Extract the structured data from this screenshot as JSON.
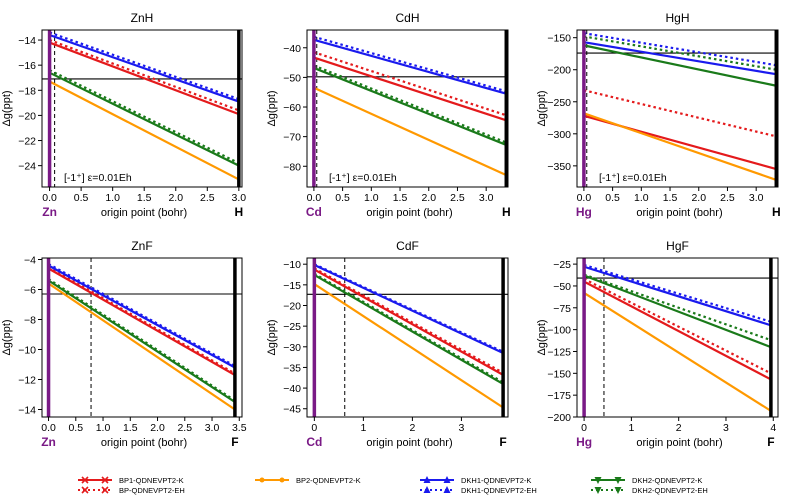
{
  "legend": {
    "entries": [
      {
        "label": "BP1-QDNEVPT2-K",
        "color": "#e41a1c",
        "style": "solid",
        "marker": "x"
      },
      {
        "label": "BP-QDNEVPT2-EH",
        "color": "#e41a1c",
        "style": "dotted",
        "marker": "x"
      },
      {
        "label": "BP2-QDNEVPT2-K",
        "color": "#ff9900",
        "style": "solid",
        "marker": "o"
      },
      {
        "label": "DKH1-QDNEVPT2-K",
        "color": "#1a1aee",
        "style": "solid",
        "marker": "^"
      },
      {
        "label": "DKH1-QDNEVPT2-EH",
        "color": "#1a1aee",
        "style": "dotted",
        "marker": "^"
      },
      {
        "label": "DKH2-QDNEVPT2-K",
        "color": "#1a7a1a",
        "style": "solid",
        "marker": "v"
      },
      {
        "label": "DKH2-QDNEVPT2-EH",
        "color": "#1a7a1a",
        "style": "dotted",
        "marker": "v"
      }
    ]
  },
  "chart_data": [
    {
      "type": "line",
      "title": "ZnH",
      "xlabel": "origin point (bohr)",
      "ylabel": "Δg(ppt)",
      "atom": "Zn",
      "end": "H",
      "xlim": [
        -0.12,
        3.05
      ],
      "ylim": [
        -25.7,
        -13.2
      ],
      "xticks": [
        0.0,
        0.5,
        1.0,
        1.5,
        2.0,
        2.5,
        3.0
      ],
      "xtick_labels": [
        "0.0",
        "0.5",
        "1.0",
        "1.5",
        "2.0",
        "2.5",
        "3.0"
      ],
      "yticks": [
        -24,
        -22,
        -20,
        -18,
        -16,
        -14
      ],
      "ytick_labels": [
        "−24",
        "−22",
        "−20",
        "−18",
        "−16",
        "−14"
      ],
      "atom_x": 0.0,
      "end_x": 3.0,
      "hline": -17.1,
      "vline_dashed": 0.08,
      "annotation": "[-1⁺] ε=0.01Eh",
      "series": [
        {
          "name": "BP1-QDNEVPT2-K",
          "x": [
            0,
            3.0
          ],
          "y": [
            -14.2,
            -19.9
          ]
        },
        {
          "name": "BP-QDNEVPT2-EH",
          "x": [
            0,
            3.0
          ],
          "y": [
            -14.0,
            -19.6
          ]
        },
        {
          "name": "BP2-QDNEVPT2-K",
          "x": [
            0,
            3.0
          ],
          "y": [
            -17.3,
            -25.1
          ]
        },
        {
          "name": "DKH1-QDNEVPT2-K",
          "x": [
            0,
            3.0
          ],
          "y": [
            -13.6,
            -18.9
          ]
        },
        {
          "name": "DKH1-QDNEVPT2-EH",
          "x": [
            0,
            3.0
          ],
          "y": [
            -13.4,
            -18.7
          ]
        },
        {
          "name": "DKH2-QDNEVPT2-K",
          "x": [
            0,
            3.0
          ],
          "y": [
            -16.6,
            -24.0
          ]
        },
        {
          "name": "DKH2-QDNEVPT2-EH",
          "x": [
            0,
            3.0
          ],
          "y": [
            -16.4,
            -23.8
          ]
        }
      ]
    },
    {
      "type": "line",
      "title": "CdH",
      "xlabel": "origin point (bohr)",
      "ylabel": "Δg(ppt)",
      "atom": "Cd",
      "end": "H",
      "xlim": [
        -0.12,
        3.38
      ],
      "ylim": [
        -87,
        -34
      ],
      "xticks": [
        0.0,
        0.5,
        1.0,
        1.5,
        2.0,
        2.5,
        3.0
      ],
      "xtick_labels": [
        "0.0",
        "0.5",
        "1.0",
        "1.5",
        "2.0",
        "2.5",
        "3.0"
      ],
      "yticks": [
        -80,
        -70,
        -60,
        -50,
        -40
      ],
      "ytick_labels": [
        "−80",
        "−70",
        "−60",
        "−50",
        "−40"
      ],
      "atom_x": 0.0,
      "end_x": 3.35,
      "hline": -49.8,
      "vline_dashed": 0.05,
      "annotation": "[-1⁺] ε=0.01Eh",
      "series": [
        {
          "name": "BP1-QDNEVPT2-K",
          "x": [
            0,
            3.35
          ],
          "y": [
            -43.3,
            -64.5
          ]
        },
        {
          "name": "BP-QDNEVPT2-EH",
          "x": [
            0,
            3.35
          ],
          "y": [
            -41.5,
            -62.8
          ]
        },
        {
          "name": "BP2-QDNEVPT2-K",
          "x": [
            0,
            3.35
          ],
          "y": [
            -53.5,
            -83.0
          ]
        },
        {
          "name": "DKH1-QDNEVPT2-K",
          "x": [
            0,
            3.35
          ],
          "y": [
            -37.3,
            -55.5
          ]
        },
        {
          "name": "DKH1-QDNEVPT2-EH",
          "x": [
            0,
            3.35
          ],
          "y": [
            -36.3,
            -54.7
          ]
        },
        {
          "name": "DKH2-QDNEVPT2-K",
          "x": [
            0,
            3.35
          ],
          "y": [
            -46.8,
            -72.8
          ]
        },
        {
          "name": "DKH2-QDNEVPT2-EH",
          "x": [
            0,
            3.35
          ],
          "y": [
            -46.0,
            -72.0
          ]
        }
      ]
    },
    {
      "type": "line",
      "title": "HgH",
      "xlabel": "origin point (bohr)",
      "ylabel": "Δg(ppt)",
      "atom": "Hg",
      "end": "H",
      "xlim": [
        -0.12,
        3.38
      ],
      "ylim": [
        -383,
        -138
      ],
      "xticks": [
        0.0,
        0.5,
        1.0,
        1.5,
        2.0,
        2.5,
        3.0
      ],
      "xtick_labels": [
        "0.0",
        "0.5",
        "1.0",
        "1.5",
        "2.0",
        "2.5",
        "3.0"
      ],
      "yticks": [
        -350,
        -300,
        -250,
        -200,
        -150
      ],
      "ytick_labels": [
        "−350",
        "−300",
        "−250",
        "−200",
        "−150"
      ],
      "atom_x": 0.0,
      "end_x": 3.35,
      "hline": -174,
      "vline_dashed": 0.05,
      "annotation": "[-1⁺] ε=0.01Eh",
      "series": [
        {
          "name": "BP1-QDNEVPT2-K",
          "x": [
            0,
            3.35
          ],
          "y": [
            -272,
            -355
          ]
        },
        {
          "name": "BP-QDNEVPT2-EH",
          "x": [
            0,
            3.35
          ],
          "y": [
            -232,
            -304
          ]
        },
        {
          "name": "BP2-QDNEVPT2-K",
          "x": [
            0,
            3.35
          ],
          "y": [
            -268,
            -372
          ]
        },
        {
          "name": "DKH1-QDNEVPT2-K",
          "x": [
            0,
            3.35
          ],
          "y": [
            -157,
            -207
          ]
        },
        {
          "name": "DKH1-QDNEVPT2-EH",
          "x": [
            0,
            3.35
          ],
          "y": [
            -143,
            -193
          ]
        },
        {
          "name": "DKH2-QDNEVPT2-K",
          "x": [
            0,
            3.35
          ],
          "y": [
            -162,
            -225
          ]
        },
        {
          "name": "DKH2-QDNEVPT2-EH",
          "x": [
            0,
            3.35
          ],
          "y": [
            -148,
            -200
          ]
        }
      ]
    },
    {
      "type": "line",
      "title": "ZnF",
      "xlabel": "origin point (bohr)",
      "ylabel": "Δg(ppt)",
      "atom": "Zn",
      "end": "F",
      "xlim": [
        -0.12,
        3.55
      ],
      "ylim": [
        -14.5,
        -3.9
      ],
      "xticks": [
        0.0,
        0.5,
        1.0,
        1.5,
        2.0,
        2.5,
        3.0,
        3.5
      ],
      "xtick_labels": [
        "0.0",
        "0.5",
        "1.0",
        "1.5",
        "2.0",
        "2.5",
        "3.0",
        "3.5"
      ],
      "yticks": [
        -14,
        -12,
        -10,
        -8,
        -6,
        -4
      ],
      "ytick_labels": [
        "−14",
        "−12",
        "−10",
        "−8",
        "−6",
        "−4"
      ],
      "atom_x": 0.0,
      "end_x": 3.42,
      "hline": -6.3,
      "vline_dashed": 0.78,
      "annotation": "",
      "series": [
        {
          "name": "BP1-QDNEVPT2-K",
          "x": [
            0,
            3.42
          ],
          "y": [
            -4.6,
            -11.7
          ]
        },
        {
          "name": "BP-QDNEVPT2-EH",
          "x": [
            0,
            3.42
          ],
          "y": [
            -4.5,
            -11.6
          ]
        },
        {
          "name": "BP2-QDNEVPT2-K",
          "x": [
            0,
            3.42
          ],
          "y": [
            -5.6,
            -14.0
          ]
        },
        {
          "name": "DKH1-QDNEVPT2-K",
          "x": [
            0,
            3.42
          ],
          "y": [
            -4.4,
            -11.2
          ]
        },
        {
          "name": "DKH1-QDNEVPT2-EH",
          "x": [
            0,
            3.42
          ],
          "y": [
            -4.3,
            -11.1
          ]
        },
        {
          "name": "DKH2-QDNEVPT2-K",
          "x": [
            0,
            3.42
          ],
          "y": [
            -5.4,
            -13.5
          ]
        },
        {
          "name": "DKH2-QDNEVPT2-EH",
          "x": [
            0,
            3.42
          ],
          "y": [
            -5.3,
            -13.4
          ]
        }
      ]
    },
    {
      "type": "line",
      "title": "CdF",
      "xlabel": "origin point (bohr)",
      "ylabel": "Δg(ppt)",
      "atom": "Cd",
      "end": "F",
      "xlim": [
        -0.15,
        3.95
      ],
      "ylim": [
        -47,
        -8.5
      ],
      "xticks": [
        0,
        1,
        2,
        3
      ],
      "xtick_labels": [
        "0",
        "1",
        "2",
        "3"
      ],
      "yticks": [
        -45,
        -40,
        -35,
        -30,
        -25,
        -20,
        -15,
        -10
      ],
      "ytick_labels": [
        "−45",
        "−40",
        "−35",
        "−30",
        "−25",
        "−20",
        "−15",
        "−10"
      ],
      "atom_x": 0.0,
      "end_x": 3.85,
      "hline": -17.3,
      "vline_dashed": 0.62,
      "annotation": "",
      "series": [
        {
          "name": "BP1-QDNEVPT2-K",
          "x": [
            0,
            3.85
          ],
          "y": [
            -11.3,
            -36.8
          ]
        },
        {
          "name": "BP-QDNEVPT2-EH",
          "x": [
            0,
            3.85
          ],
          "y": [
            -11.0,
            -36.3
          ]
        },
        {
          "name": "BP2-QDNEVPT2-K",
          "x": [
            0,
            3.85
          ],
          "y": [
            -14.8,
            -44.7
          ]
        },
        {
          "name": "DKH1-QDNEVPT2-K",
          "x": [
            0,
            3.85
          ],
          "y": [
            -10.2,
            -31.5
          ]
        },
        {
          "name": "DKH1-QDNEVPT2-EH",
          "x": [
            0,
            3.85
          ],
          "y": [
            -10.0,
            -31.2
          ]
        },
        {
          "name": "DKH2-QDNEVPT2-K",
          "x": [
            0,
            3.85
          ],
          "y": [
            -12.6,
            -39.0
          ]
        },
        {
          "name": "DKH2-QDNEVPT2-EH",
          "x": [
            0,
            3.85
          ],
          "y": [
            -12.3,
            -38.6
          ]
        }
      ]
    },
    {
      "type": "line",
      "title": "HgF",
      "xlabel": "origin point (bohr)",
      "ylabel": "Δg(ppt)",
      "atom": "Hg",
      "end": "F",
      "xlim": [
        -0.15,
        4.1
      ],
      "ylim": [
        -200,
        -18
      ],
      "xticks": [
        0,
        1,
        2,
        3,
        4
      ],
      "xtick_labels": [
        "0",
        "1",
        "2",
        "3",
        "4"
      ],
      "yticks": [
        -200,
        -175,
        -150,
        -125,
        -100,
        -75,
        -50,
        -25
      ],
      "ytick_labels": [
        "−200",
        "−175",
        "−150",
        "−125",
        "−100",
        "−75",
        "−50",
        "−25"
      ],
      "atom_x": 0.0,
      "end_x": 3.95,
      "hline": -41,
      "vline_dashed": 0.42,
      "annotation": "",
      "series": [
        {
          "name": "BP1-QDNEVPT2-K",
          "x": [
            0,
            3.95
          ],
          "y": [
            -45,
            -157
          ]
        },
        {
          "name": "BP-QDNEVPT2-EH",
          "x": [
            0,
            3.95
          ],
          "y": [
            -42,
            -150
          ]
        },
        {
          "name": "BP2-QDNEVPT2-K",
          "x": [
            0,
            3.95
          ],
          "y": [
            -58,
            -193
          ]
        },
        {
          "name": "DKH1-QDNEVPT2-K",
          "x": [
            0,
            3.95
          ],
          "y": [
            -28,
            -95
          ]
        },
        {
          "name": "DKH1-QDNEVPT2-EH",
          "x": [
            0,
            3.95
          ],
          "y": [
            -26,
            -91
          ]
        },
        {
          "name": "DKH2-QDNEVPT2-K",
          "x": [
            0,
            3.95
          ],
          "y": [
            -38,
            -120
          ]
        },
        {
          "name": "DKH2-QDNEVPT2-EH",
          "x": [
            0,
            3.95
          ],
          "y": [
            -37,
            -112
          ]
        }
      ]
    }
  ]
}
